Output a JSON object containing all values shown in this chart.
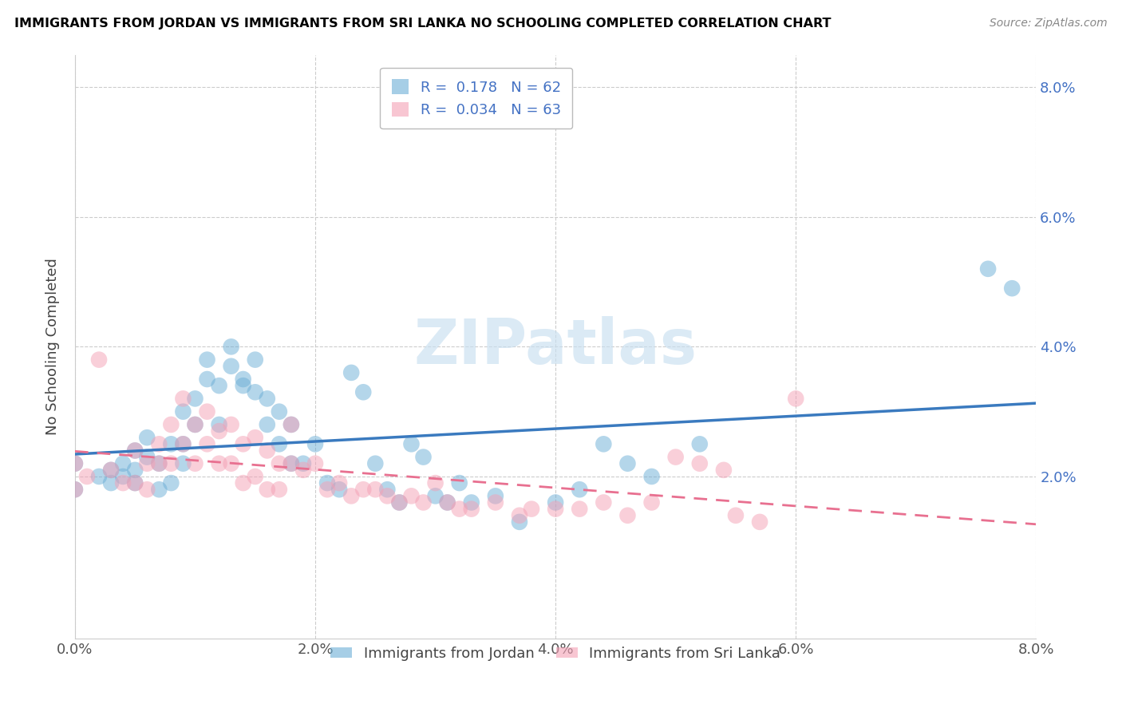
{
  "title": "IMMIGRANTS FROM JORDAN VS IMMIGRANTS FROM SRI LANKA NO SCHOOLING COMPLETED CORRELATION CHART",
  "source": "Source: ZipAtlas.com",
  "ylabel": "No Schooling Completed",
  "xlim": [
    0.0,
    0.08
  ],
  "ylim": [
    -0.005,
    0.085
  ],
  "xtick_labels": [
    "0.0%",
    "2.0%",
    "4.0%",
    "6.0%",
    "8.0%"
  ],
  "xtick_vals": [
    0.0,
    0.02,
    0.04,
    0.06,
    0.08
  ],
  "ytick_labels": [
    "2.0%",
    "4.0%",
    "6.0%",
    "8.0%"
  ],
  "ytick_vals": [
    0.02,
    0.04,
    0.06,
    0.08
  ],
  "jordan_color": "#6baed6",
  "sri_lanka_color": "#f4a0b5",
  "jordan_R": 0.178,
  "jordan_N": 62,
  "sri_lanka_R": 0.034,
  "sri_lanka_N": 63,
  "jordan_line_color": "#3a7abf",
  "sri_lanka_line_color": "#e87090",
  "watermark": "ZIPatlas",
  "jordan_scatter_x": [
    0.0,
    0.0,
    0.002,
    0.003,
    0.003,
    0.004,
    0.004,
    0.005,
    0.005,
    0.005,
    0.006,
    0.006,
    0.007,
    0.007,
    0.008,
    0.008,
    0.009,
    0.009,
    0.009,
    0.01,
    0.01,
    0.011,
    0.011,
    0.012,
    0.012,
    0.013,
    0.013,
    0.014,
    0.014,
    0.015,
    0.015,
    0.016,
    0.016,
    0.017,
    0.017,
    0.018,
    0.018,
    0.019,
    0.02,
    0.021,
    0.022,
    0.023,
    0.024,
    0.025,
    0.026,
    0.027,
    0.028,
    0.029,
    0.03,
    0.031,
    0.032,
    0.033,
    0.035,
    0.037,
    0.04,
    0.042,
    0.044,
    0.046,
    0.048,
    0.052,
    0.076,
    0.078
  ],
  "jordan_scatter_y": [
    0.018,
    0.022,
    0.02,
    0.021,
    0.019,
    0.02,
    0.022,
    0.024,
    0.021,
    0.019,
    0.026,
    0.023,
    0.022,
    0.018,
    0.025,
    0.019,
    0.03,
    0.025,
    0.022,
    0.032,
    0.028,
    0.038,
    0.035,
    0.034,
    0.028,
    0.04,
    0.037,
    0.035,
    0.034,
    0.033,
    0.038,
    0.032,
    0.028,
    0.03,
    0.025,
    0.028,
    0.022,
    0.022,
    0.025,
    0.019,
    0.018,
    0.036,
    0.033,
    0.022,
    0.018,
    0.016,
    0.025,
    0.023,
    0.017,
    0.016,
    0.019,
    0.016,
    0.017,
    0.013,
    0.016,
    0.018,
    0.025,
    0.022,
    0.02,
    0.025,
    0.052,
    0.049
  ],
  "sri_lanka_scatter_x": [
    0.0,
    0.0,
    0.001,
    0.002,
    0.003,
    0.004,
    0.005,
    0.005,
    0.006,
    0.006,
    0.007,
    0.007,
    0.008,
    0.008,
    0.009,
    0.009,
    0.01,
    0.01,
    0.011,
    0.011,
    0.012,
    0.012,
    0.013,
    0.013,
    0.014,
    0.014,
    0.015,
    0.015,
    0.016,
    0.016,
    0.017,
    0.017,
    0.018,
    0.018,
    0.019,
    0.02,
    0.021,
    0.022,
    0.023,
    0.024,
    0.025,
    0.026,
    0.027,
    0.028,
    0.029,
    0.03,
    0.031,
    0.032,
    0.033,
    0.035,
    0.037,
    0.038,
    0.04,
    0.042,
    0.044,
    0.046,
    0.048,
    0.05,
    0.052,
    0.054,
    0.055,
    0.057,
    0.06
  ],
  "sri_lanka_scatter_y": [
    0.018,
    0.022,
    0.02,
    0.038,
    0.021,
    0.019,
    0.024,
    0.019,
    0.022,
    0.018,
    0.025,
    0.022,
    0.028,
    0.022,
    0.032,
    0.025,
    0.028,
    0.022,
    0.03,
    0.025,
    0.027,
    0.022,
    0.028,
    0.022,
    0.025,
    0.019,
    0.026,
    0.02,
    0.024,
    0.018,
    0.022,
    0.018,
    0.028,
    0.022,
    0.021,
    0.022,
    0.018,
    0.019,
    0.017,
    0.018,
    0.018,
    0.017,
    0.016,
    0.017,
    0.016,
    0.019,
    0.016,
    0.015,
    0.015,
    0.016,
    0.014,
    0.015,
    0.015,
    0.015,
    0.016,
    0.014,
    0.016,
    0.023,
    0.022,
    0.021,
    0.014,
    0.013,
    0.032
  ],
  "legend_text_color": "#4472c4",
  "axis_tick_color": "#4472c4",
  "grid_color": "#cccccc",
  "spine_color": "#cccccc"
}
